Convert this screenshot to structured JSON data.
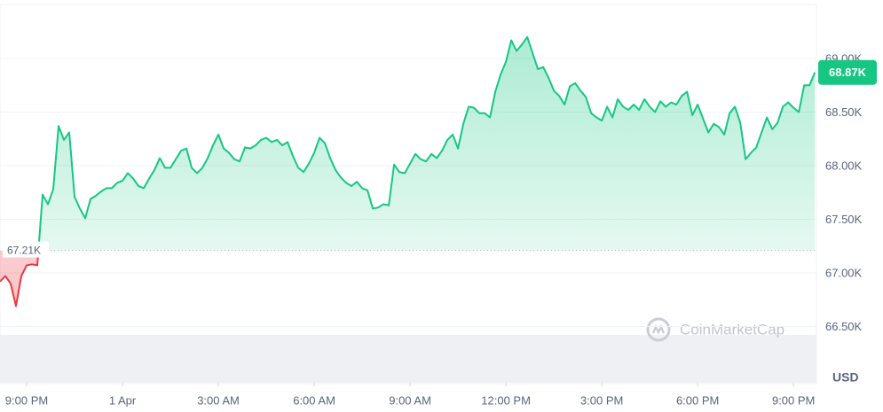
{
  "chart_data": {
    "type": "line",
    "series": [
      {
        "color": "#16c784",
        "below_color": "#ea3943",
        "x": [
          -50,
          -40,
          -30,
          -20,
          -10,
          0,
          10,
          20,
          30,
          40,
          50,
          60,
          70,
          80,
          90,
          100,
          110,
          120,
          130,
          140,
          150,
          160,
          170,
          180,
          190,
          200,
          210,
          220,
          230,
          240,
          250,
          260,
          270,
          280,
          290,
          300,
          310,
          320,
          330,
          340,
          350,
          360,
          370,
          380,
          390,
          400,
          410,
          420,
          430,
          440,
          450,
          460,
          470,
          480,
          490,
          500,
          510,
          520,
          530,
          540,
          550,
          560,
          570,
          580,
          590,
          600,
          610,
          620,
          630,
          640,
          650,
          660,
          670,
          680,
          690,
          700,
          710,
          720,
          730,
          740,
          750,
          760,
          770,
          780,
          790,
          800,
          810,
          820,
          830,
          840,
          850,
          860,
          870,
          880,
          890,
          900,
          910,
          920,
          930,
          940,
          950,
          960,
          970,
          980,
          990,
          1000,
          1010,
          1020,
          1030,
          1040,
          1050,
          1060,
          1070,
          1080,
          1090,
          1100,
          1110,
          1120,
          1130,
          1140,
          1150,
          1160,
          1170,
          1180,
          1190,
          1200,
          1210,
          1220,
          1230,
          1240,
          1250,
          1260,
          1270,
          1280,
          1290,
          1300,
          1310,
          1320,
          1330,
          1340,
          1350,
          1360,
          1370,
          1380,
          1390,
          1400,
          1410,
          1420,
          1430,
          1440,
          1450,
          1460,
          1470,
          1480
        ],
        "values": [
          66920,
          66970,
          66900,
          66690,
          66970,
          67070,
          67080,
          67070,
          67730,
          67640,
          67780,
          68370,
          68240,
          68310,
          67710,
          67600,
          67510,
          67690,
          67720,
          67760,
          67790,
          67790,
          67840,
          67860,
          67930,
          67880,
          67810,
          67790,
          67880,
          67960,
          68070,
          67980,
          67980,
          68060,
          68140,
          68160,
          67980,
          67930,
          67980,
          68070,
          68190,
          68290,
          68160,
          68120,
          68060,
          68040,
          68170,
          68160,
          68190,
          68240,
          68260,
          68220,
          68240,
          68190,
          68220,
          68090,
          67980,
          67940,
          68020,
          68120,
          68260,
          68210,
          68070,
          67960,
          67890,
          67840,
          67810,
          67850,
          67790,
          67770,
          67600,
          67610,
          67640,
          67630,
          68010,
          67940,
          67930,
          68020,
          68110,
          68060,
          68040,
          68110,
          68070,
          68140,
          68240,
          68290,
          68160,
          68390,
          68550,
          68540,
          68490,
          68490,
          68450,
          68690,
          68850,
          68970,
          69170,
          69070,
          69130,
          69200,
          69050,
          68900,
          68920,
          68820,
          68700,
          68650,
          68570,
          68740,
          68770,
          68700,
          68640,
          68490,
          68450,
          68420,
          68550,
          68450,
          68620,
          68550,
          68520,
          68570,
          68520,
          68620,
          68550,
          68500,
          68600,
          68550,
          68590,
          68570,
          68650,
          68690,
          68470,
          68570,
          68440,
          68310,
          68390,
          68360,
          68290,
          68490,
          68550,
          68400,
          68060,
          68120,
          68170,
          68310,
          68450,
          68340,
          68400,
          68550,
          68590,
          68540,
          68500,
          68750,
          68750,
          68870
        ]
      }
    ],
    "baseline": {
      "value": 67210,
      "label": "67.21K"
    },
    "last_label": {
      "value": 68870,
      "label": "68.87K"
    },
    "xlim": [
      -50,
      1483
    ],
    "xticks": [
      {
        "value": 0,
        "label": "9:00 PM"
      },
      {
        "value": 180,
        "label": "1 Apr"
      },
      {
        "value": 360,
        "label": "3:00 AM"
      },
      {
        "value": 540,
        "label": "6:00 AM"
      },
      {
        "value": 720,
        "label": "9:00 AM"
      },
      {
        "value": 900,
        "label": "12:00 PM"
      },
      {
        "value": 1080,
        "label": "3:00 PM"
      },
      {
        "value": 1260,
        "label": "6:00 PM"
      },
      {
        "value": 1440,
        "label": "9:00 PM"
      }
    ],
    "ylim": [
      65975,
      69504
    ],
    "yticks": [
      {
        "value": 66500,
        "label": "66.50K"
      },
      {
        "value": 67000,
        "label": "67.00K"
      },
      {
        "value": 67500,
        "label": "67.50K"
      },
      {
        "value": 68000,
        "label": "68.00K"
      },
      {
        "value": 68500,
        "label": "68.50K"
      },
      {
        "value": 69000,
        "label": "69.00K"
      }
    ],
    "y_unit": "USD",
    "watermark": "CoinMarketCap",
    "grid": true
  }
}
